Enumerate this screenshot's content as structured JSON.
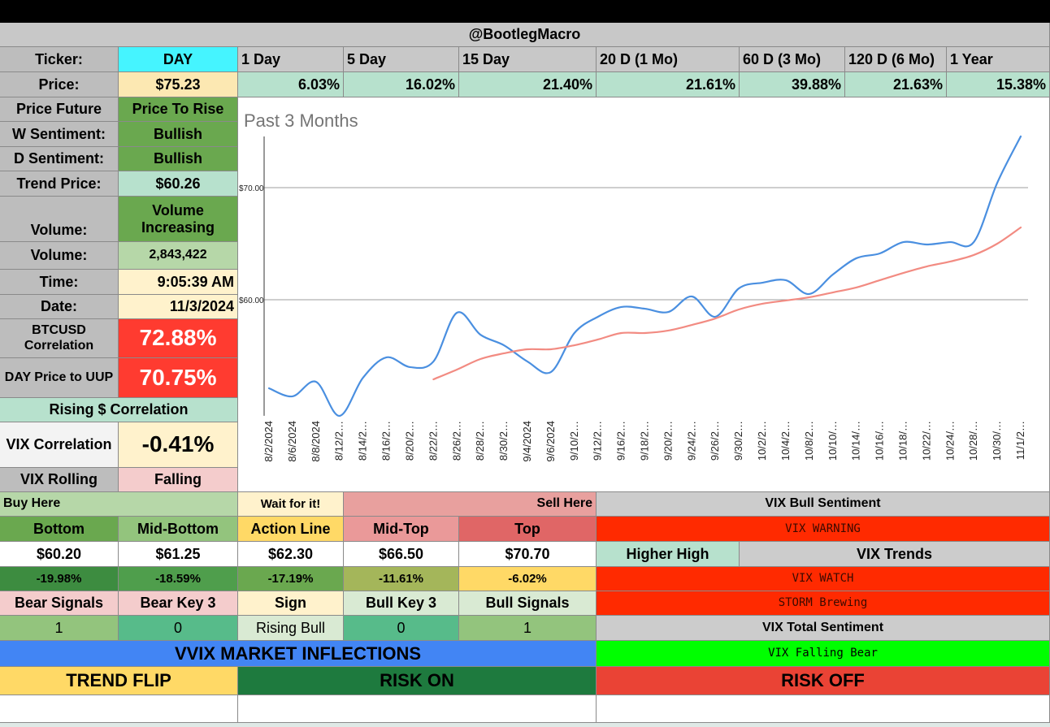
{
  "header": "@BootlegMacro",
  "ticker": {
    "label": "Ticker:",
    "value": "DAY"
  },
  "price": {
    "label": "Price:",
    "value": "$75.23"
  },
  "periods": [
    {
      "label": "1 Day",
      "change": "6.03%"
    },
    {
      "label": "5 Day",
      "change": "16.02%"
    },
    {
      "label": "15 Day",
      "change": "21.40%"
    },
    {
      "label": "20 D (1 Mo)",
      "change": "21.61%"
    },
    {
      "label": "60 D (3 Mo)",
      "change": "39.88%"
    },
    {
      "label": "120 D (6 Mo)",
      "change": "21.63%"
    },
    {
      "label": "1 Year",
      "change": "15.38%"
    }
  ],
  "stats": [
    {
      "label": "Price Future",
      "value": "Price To Rise"
    },
    {
      "label": "W Sentiment:",
      "value": "Bullish"
    },
    {
      "label": "D Sentiment:",
      "value": "Bullish"
    },
    {
      "label": "Trend Price:",
      "value": "$60.26"
    },
    {
      "label": "Volume:",
      "value": "Volume Increasing"
    },
    {
      "label": "Volume:",
      "value": "2,843,422"
    },
    {
      "label": "Time:",
      "value": "9:05:39 AM"
    },
    {
      "label": "Date:",
      "value": "11/3/2024"
    },
    {
      "label": "BTCUSD Correlation",
      "value": "72.88%"
    },
    {
      "label": "DAY Price to UUP",
      "value": "70.75%"
    }
  ],
  "rising_correlation": "Rising $ Correlation",
  "vix_correlation": {
    "label": "VIX Correlation",
    "value": "-0.41%"
  },
  "vix_rolling": {
    "label": "VIX Rolling",
    "value": "Falling"
  },
  "levels": {
    "buy": "Buy Here",
    "wait": "Wait for it!",
    "sell": "Sell Here",
    "names": [
      "Bottom",
      "Mid-Bottom",
      "Action Line",
      "Mid-Top",
      "Top"
    ],
    "prices": [
      "$60.20",
      "$61.25",
      "$62.30",
      "$66.50",
      "$70.70"
    ],
    "changes": [
      "-19.98%",
      "-18.59%",
      "-17.19%",
      "-11.61%",
      "-6.02%"
    ]
  },
  "signals": {
    "names": [
      "Bear Signals",
      "Bear Key 3",
      "Sign",
      "Bull Key 3",
      "Bull Signals"
    ],
    "values": [
      "1",
      "0",
      "Rising Bull",
      "0",
      "1"
    ]
  },
  "vix": {
    "bull_sentiment": "VIX Bull Sentiment",
    "warning": "VIX WARNING",
    "higher_high": "Higher High",
    "trends": "VIX Trends",
    "watch": "VIX WATCH",
    "storm": "STORM Brewing",
    "total": "VIX Total Sentiment",
    "falling": "VIX Falling Bear"
  },
  "inflections": {
    "title": "VVIX MARKET INFLECTIONS",
    "trend_flip": "TREND FLIP",
    "risk_on": "RISK ON",
    "risk_off": "RISK OFF"
  },
  "chart_data": {
    "type": "line",
    "title": "Past 3 Months",
    "categories": [
      "8/2/2024",
      "8/6/2024",
      "8/8/2024",
      "8/12/2…",
      "8/14/2…",
      "8/16/2…",
      "8/20/2…",
      "8/22/2…",
      "8/26/2…",
      "8/28/2…",
      "8/30/2…",
      "9/4/2024",
      "9/6/2024",
      "9/10/2…",
      "9/12/2…",
      "9/16/2…",
      "9/18/2…",
      "9/20/2…",
      "9/24/2…",
      "9/26/2…",
      "9/30/2…",
      "10/2/2…",
      "10/4/2…",
      "10/8/2…",
      "10/10/…",
      "10/14/…",
      "10/16/…",
      "10/18/…",
      "10/22/…",
      "10/24/…",
      "10/28/…",
      "10/30/…",
      "11/1/2…"
    ],
    "series": [
      {
        "color": "#4a8fe0",
        "values": [
          52.1,
          51.38,
          52.68,
          49.64,
          53.04,
          54.86,
          53.99,
          54.49,
          58.84,
          56.88,
          55.94,
          54.49,
          53.55,
          57.03,
          58.48,
          59.35,
          59.2,
          58.91,
          60.29,
          58.48,
          61.01,
          61.52,
          61.74,
          60.51,
          62.25,
          63.7,
          64.13,
          65.14,
          64.93,
          65.14,
          65.14,
          70.43,
          74.57
        ]
      },
      {
        "color": "#f28b82",
        "values": [
          null,
          null,
          null,
          null,
          null,
          null,
          null,
          52.9,
          53.77,
          54.71,
          55.22,
          55.58,
          55.58,
          55.94,
          56.45,
          57.03,
          57.03,
          57.25,
          57.75,
          58.33,
          59.13,
          59.64,
          59.93,
          60.22,
          60.65,
          61.09,
          61.74,
          62.39,
          62.97,
          63.41,
          63.99,
          65.0,
          66.45
        ]
      }
    ],
    "ylim": [
      49.5,
      75
    ],
    "yticks": [
      {
        "value": 60,
        "label": "$60.00"
      },
      {
        "value": 70,
        "label": "$70.00"
      }
    ],
    "grid": true
  }
}
